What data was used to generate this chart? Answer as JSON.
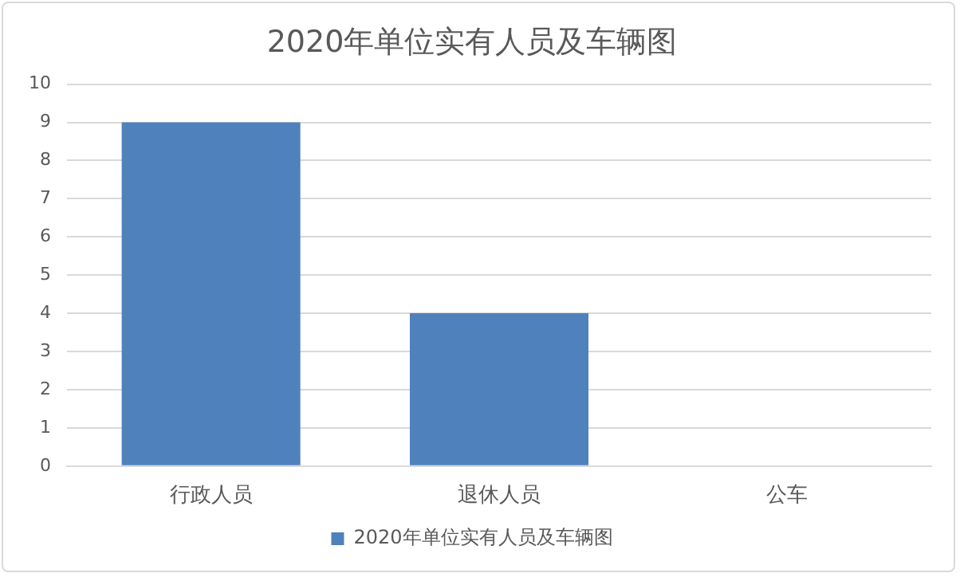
{
  "chart_data": {
    "type": "bar",
    "title": "2020年单位实有人员及车辆图",
    "categories": [
      "行政人员",
      "退休人员",
      "公车"
    ],
    "series": [
      {
        "name": "2020年单位实有人员及车辆图",
        "color": "#4f81bd",
        "values": [
          9,
          4,
          0
        ]
      }
    ],
    "ylim": [
      0,
      10
    ],
    "yticks": [
      0,
      1,
      2,
      3,
      4,
      5,
      6,
      7,
      8,
      9,
      10
    ],
    "grid": "y",
    "legend": "bottom"
  }
}
